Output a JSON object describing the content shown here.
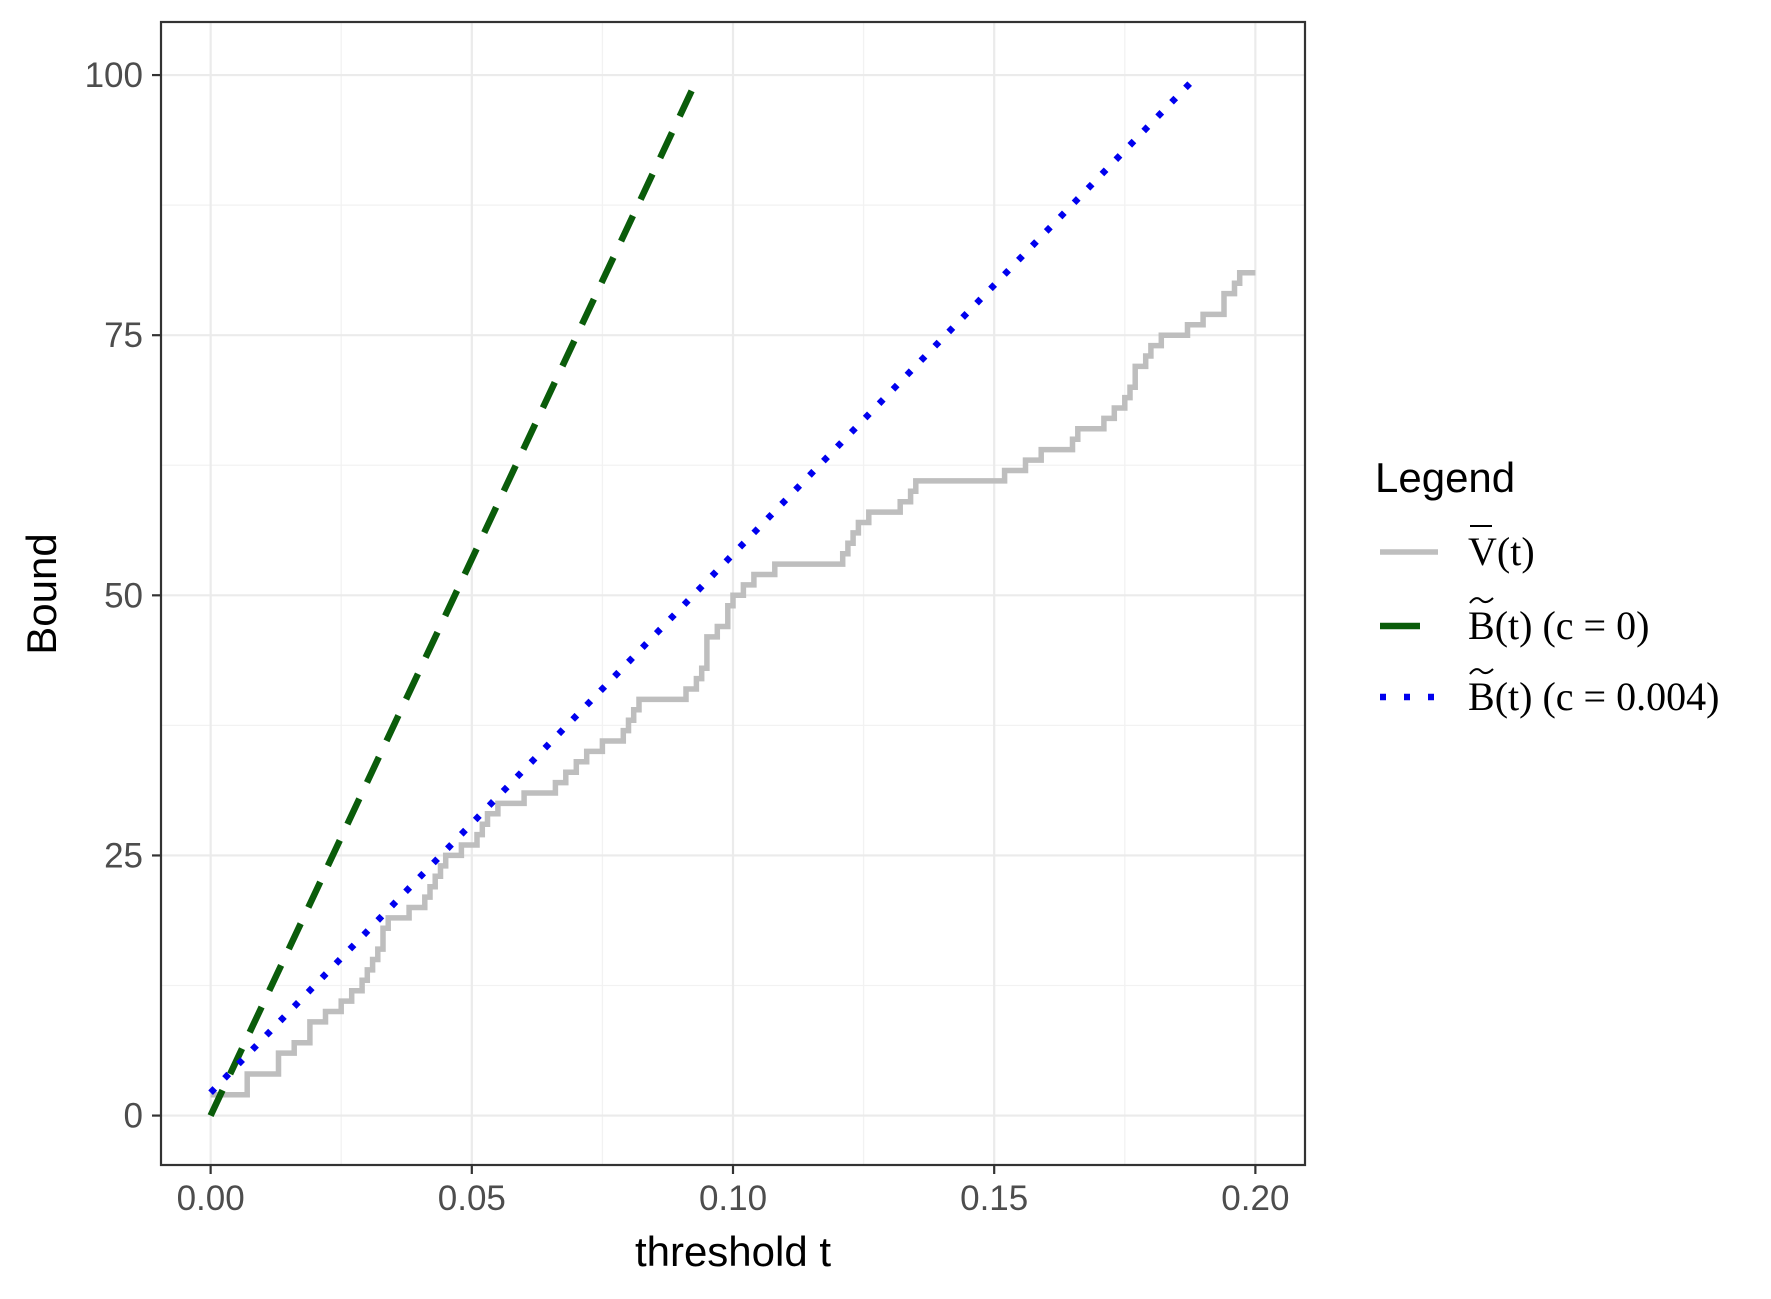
{
  "chart_data": {
    "type": "line",
    "title": "",
    "xlabel": "threshold t",
    "ylabel": "Bound",
    "xlim": [
      -0.0095,
      0.2095
    ],
    "ylim": [
      -4.75,
      105.1
    ],
    "x_ticks": [
      0.0,
      0.05,
      0.1,
      0.15,
      0.2
    ],
    "x_tick_labels": [
      "0.00",
      "0.05",
      "0.10",
      "0.15",
      "0.20"
    ],
    "y_ticks": [
      0,
      25,
      50,
      75,
      100
    ],
    "y_tick_labels": [
      "0",
      "25",
      "50",
      "75",
      "100"
    ],
    "grid": true,
    "legend": {
      "title": "Legend",
      "placement": "right",
      "entries": [
        {
          "main": "V",
          "rest": "(t)",
          "accent": "bar"
        },
        {
          "main": "B",
          "rest": "(t) (c = 0)",
          "accent": "tilde"
        },
        {
          "main": "B",
          "rest": "(t) (c = 0.004)",
          "accent": "tilde"
        }
      ]
    },
    "series": [
      {
        "key": "V",
        "color": "#bebebe",
        "style": "solid",
        "step": true,
        "x": [
          0.0,
          0.003,
          0.007,
          0.013,
          0.016,
          0.019,
          0.022,
          0.025,
          0.027,
          0.029,
          0.03,
          0.031,
          0.032,
          0.033,
          0.034,
          0.035,
          0.038,
          0.041,
          0.042,
          0.043,
          0.044,
          0.045,
          0.048,
          0.051,
          0.052,
          0.053,
          0.055,
          0.057,
          0.06,
          0.066,
          0.068,
          0.07,
          0.072,
          0.073,
          0.075,
          0.079,
          0.08,
          0.081,
          0.082,
          0.083,
          0.091,
          0.093,
          0.094,
          0.095,
          0.097,
          0.099,
          0.1,
          0.102,
          0.104,
          0.106,
          0.108,
          0.112,
          0.121,
          0.122,
          0.123,
          0.124,
          0.126,
          0.128,
          0.132,
          0.134,
          0.135,
          0.136,
          0.138,
          0.139,
          0.152,
          0.156,
          0.159,
          0.165,
          0.166,
          0.171,
          0.173,
          0.175,
          0.176,
          0.177,
          0.179,
          0.18,
          0.181,
          0.182,
          0.184,
          0.187,
          0.19,
          0.194,
          0.196,
          0.197,
          0.198,
          0.2
        ],
        "y": [
          2,
          2,
          4,
          6,
          7,
          9,
          10,
          11,
          12,
          13,
          14,
          15,
          16,
          18,
          19,
          19,
          20,
          21,
          22,
          23,
          24,
          25,
          26,
          27,
          28,
          29,
          30,
          30,
          31,
          32,
          33,
          34,
          35,
          35,
          36,
          37,
          38,
          39,
          40,
          40,
          41,
          42,
          43,
          46,
          47,
          49,
          50,
          51,
          52,
          52,
          53,
          53,
          54,
          55,
          56,
          57,
          58,
          58,
          59,
          60,
          61,
          61,
          61,
          61,
          62,
          63,
          64,
          65,
          66,
          67,
          68,
          69,
          70,
          72,
          73,
          74,
          74,
          75,
          75,
          76,
          77,
          79,
          80,
          81,
          81,
          81
        ]
      },
      {
        "key": "B0",
        "color": "#0a5c0a",
        "style": "dashed",
        "x": [
          0.0,
          0.0935
        ],
        "y": [
          0,
          100
        ]
      },
      {
        "key": "B004",
        "color": "#0000ee",
        "style": "dotted",
        "x": [
          0.0,
          0.189
        ],
        "y": [
          2.2,
          100
        ]
      }
    ]
  }
}
